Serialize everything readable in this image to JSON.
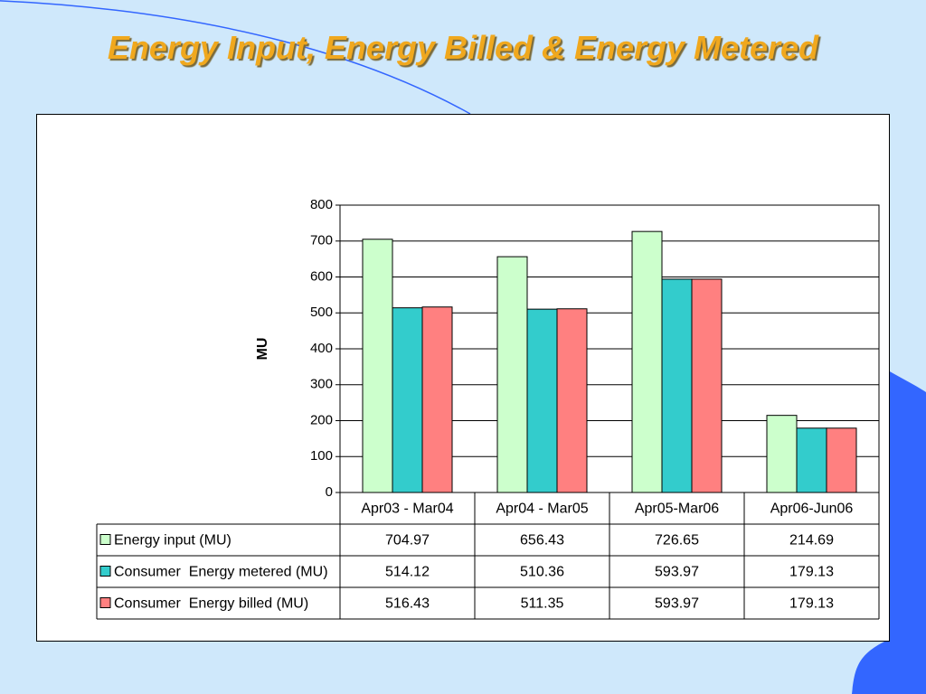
{
  "slide": {
    "title": "Energy Input, Energy Billed & Energy Metered",
    "colors": {
      "background": "#cfe8fb",
      "accent_blue": "#3366ff",
      "title": "#f0a81e"
    }
  },
  "chart_data": {
    "type": "bar",
    "title": "",
    "xlabel": "",
    "ylabel": "MU",
    "ylim": [
      0,
      800
    ],
    "yticks": [
      0,
      100,
      200,
      300,
      400,
      500,
      600,
      700,
      800
    ],
    "grid": true,
    "legend": "data-table-left",
    "categories": [
      "Apr03 - Mar04",
      "Apr04 - Mar05",
      "Apr05-Mar06",
      "Apr06-Jun06"
    ],
    "series": [
      {
        "name": "Energy input (MU)",
        "color": "#ccffcc",
        "values": [
          704.97,
          656.43,
          726.65,
          214.69
        ],
        "labels": [
          "704.97",
          "656.43",
          "726.65",
          "214.69"
        ]
      },
      {
        "name": "Consumer  Energy metered (MU)",
        "color": "#33cccc",
        "values": [
          514.12,
          510.36,
          593.97,
          179.13
        ],
        "labels": [
          "514.12",
          "510.36",
          "593.97",
          "179.13"
        ]
      },
      {
        "name": "Consumer  Energy billed (MU)",
        "color": "#ff8080",
        "values": [
          516.43,
          511.35,
          593.97,
          179.13
        ],
        "labels": [
          "516.43",
          "511.35",
          "593.97",
          "179.13"
        ]
      }
    ]
  }
}
